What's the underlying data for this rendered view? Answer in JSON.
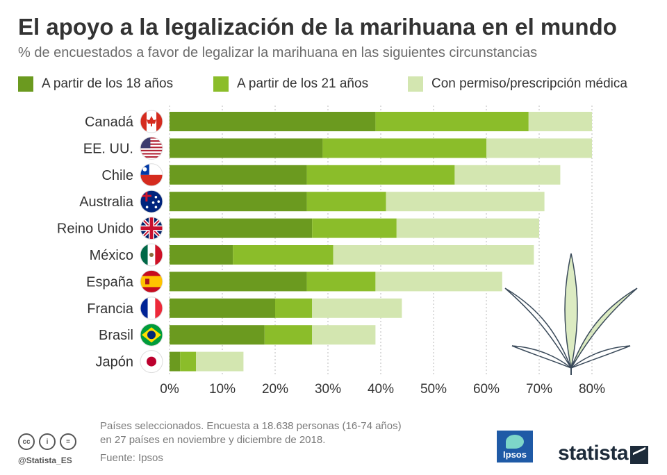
{
  "title": "El apoyo a la legalización de la marihuana en el mundo",
  "subtitle": "% de encuestados a favor de legalizar la marihuana en las siguientes circunstancias",
  "colors": {
    "series_18": "#6b9a1f",
    "series_21": "#8bbd2a",
    "series_medical": "#d3e6b0",
    "text": "#333333",
    "muted": "#7a7a7a"
  },
  "chart_data": {
    "type": "bar",
    "orientation": "horizontal",
    "stacked": true,
    "categories": [
      "Canadá",
      "EE. UU.",
      "Chile",
      "Australia",
      "Reino Unido",
      "México",
      "España",
      "Francia",
      "Brasil",
      "Japón"
    ],
    "flag_icons": [
      "canada-flag-icon",
      "usa-flag-icon",
      "chile-flag-icon",
      "australia-flag-icon",
      "uk-flag-icon",
      "mexico-flag-icon",
      "spain-flag-icon",
      "france-flag-icon",
      "brazil-flag-icon",
      "japan-flag-icon"
    ],
    "series": [
      {
        "name": "A partir de los 18 años",
        "values": [
          39,
          29,
          26,
          26,
          27,
          12,
          26,
          20,
          18,
          2
        ]
      },
      {
        "name": "A partir de los 21 años",
        "values": [
          29,
          31,
          28,
          15,
          16,
          19,
          13,
          7,
          9,
          3
        ]
      },
      {
        "name": "Con permiso/prescripción médica",
        "values": [
          12,
          20,
          20,
          30,
          27,
          38,
          24,
          17,
          12,
          9
        ]
      }
    ],
    "xlim": [
      0,
      80
    ],
    "xticks": [
      0,
      10,
      20,
      30,
      40,
      50,
      60,
      70,
      80
    ],
    "tick_labels": [
      "0%",
      "10%",
      "20%",
      "30%",
      "40%",
      "50%",
      "60%",
      "70%",
      "80%"
    ],
    "grid": true,
    "legend_position": "top"
  },
  "footer": {
    "note_line1": "Países seleccionados. Encuesta a 18.638 personas (16-74 años)",
    "note_line2": "en 27 países en noviembre y diciembre de 2018.",
    "source": "Fuente: Ipsos",
    "handle": "@Statista_ES",
    "ipsos_label": "Ipsos",
    "statista_label": "statista"
  }
}
